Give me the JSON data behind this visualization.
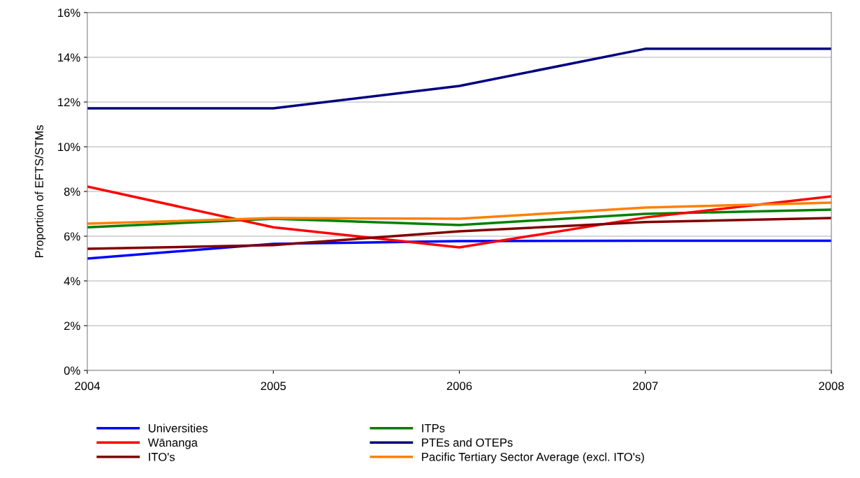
{
  "chart_data": {
    "type": "line",
    "ylabel": "Proportion of EFTS/STMs",
    "x": [
      2004,
      2005,
      2006,
      2007,
      2008
    ],
    "xlim": [
      2004,
      2008
    ],
    "xticks": [
      2004,
      2005,
      2006,
      2007,
      2008
    ],
    "ylim": [
      0,
      16
    ],
    "yticks": [
      {
        "value": 0,
        "label": "0%"
      },
      {
        "value": 2,
        "label": "2%"
      },
      {
        "value": 4,
        "label": "4%"
      },
      {
        "value": 6,
        "label": "6%"
      },
      {
        "value": 8,
        "label": "8%"
      },
      {
        "value": 10,
        "label": "10%"
      },
      {
        "value": 12,
        "label": "12%"
      },
      {
        "value": 14,
        "label": "14%"
      },
      {
        "value": 16,
        "label": "16%"
      }
    ],
    "grid": "y",
    "legend": "bottom",
    "marker": "none",
    "line_style": "solid",
    "series": [
      {
        "name": "Universities",
        "color": "#0000ff",
        "values": [
          5.0,
          5.66,
          5.78,
          5.8,
          5.8
        ]
      },
      {
        "name": "ITPs",
        "color": "#008000",
        "values": [
          6.4,
          6.78,
          6.5,
          7.0,
          7.19
        ]
      },
      {
        "name": "Wānanga",
        "color": "#ff0000",
        "values": [
          8.22,
          6.4,
          5.5,
          6.84,
          7.78
        ]
      },
      {
        "name": "PTEs and OTEPs",
        "color": "#000080",
        "values": [
          11.72,
          11.72,
          12.72,
          14.38,
          14.38
        ]
      },
      {
        "name": "ITO's",
        "color": "#800000",
        "values": [
          5.44,
          5.6,
          6.22,
          6.63,
          6.81
        ]
      },
      {
        "name": "Pacific Tertiary Sector Average (excl. ITO's)",
        "color": "#ff8000",
        "values": [
          6.56,
          6.81,
          6.78,
          7.28,
          7.5
        ]
      }
    ]
  }
}
